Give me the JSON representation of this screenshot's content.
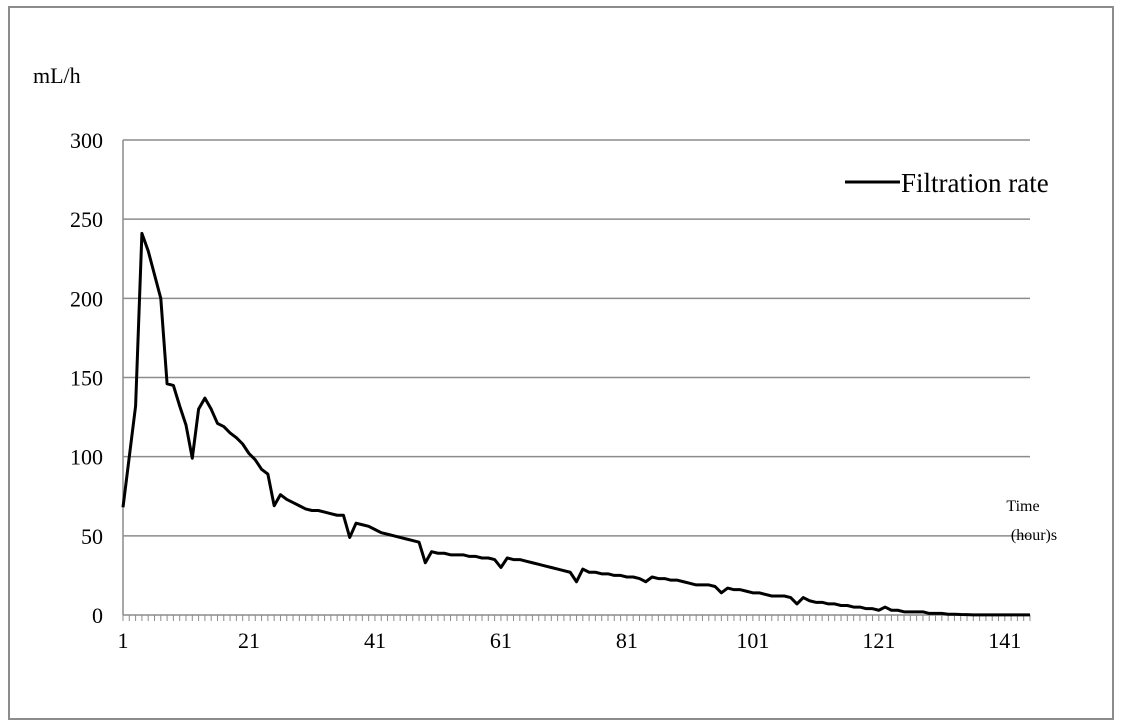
{
  "chart_data": {
    "type": "line",
    "ylabel": "mL/h",
    "xlabel_line1": "Time",
    "xlabel_line2": "(hour)s",
    "ylim": [
      0,
      300
    ],
    "yticks": [
      "0",
      "50",
      "100",
      "150",
      "200",
      "250",
      "300"
    ],
    "xticks": [
      "1",
      "21",
      "41",
      "61",
      "81",
      "101",
      "121",
      "141"
    ],
    "grid": true,
    "legend_position": "top-right",
    "line_color": "#000000",
    "series": [
      {
        "name": "Filtration rate",
        "x": [
          1,
          2,
          3,
          4,
          5,
          6,
          7,
          8,
          9,
          10,
          11,
          12,
          13,
          14,
          15,
          16,
          17,
          18,
          19,
          20,
          21,
          22,
          23,
          24,
          25,
          26,
          27,
          28,
          29,
          30,
          31,
          32,
          33,
          34,
          35,
          36,
          37,
          38,
          39,
          40,
          41,
          42,
          43,
          44,
          45,
          46,
          47,
          48,
          49,
          50,
          51,
          52,
          53,
          54,
          55,
          56,
          57,
          58,
          59,
          60,
          61,
          62,
          63,
          64,
          65,
          66,
          67,
          68,
          69,
          70,
          71,
          72,
          73,
          74,
          75,
          76,
          77,
          78,
          79,
          80,
          81,
          82,
          83,
          84,
          85,
          86,
          87,
          88,
          89,
          90,
          91,
          92,
          93,
          94,
          95,
          96,
          97,
          98,
          99,
          100,
          101,
          102,
          103,
          104,
          105,
          106,
          107,
          108,
          109,
          110,
          111,
          112,
          113,
          114,
          115,
          116,
          117,
          118,
          119,
          120,
          121,
          122,
          123,
          124,
          125,
          126,
          127,
          128,
          129,
          130,
          131,
          132,
          133,
          134,
          135,
          136,
          137,
          138,
          139,
          140,
          141,
          142,
          143,
          144,
          145
        ],
        "values": [
          68,
          100,
          132,
          241,
          230,
          215,
          200,
          146,
          145,
          132,
          120,
          99,
          130,
          137,
          130,
          121,
          119,
          115,
          112,
          108,
          102,
          98,
          92,
          89,
          69,
          76,
          73,
          71,
          69,
          67,
          66,
          66,
          65,
          64,
          63,
          63,
          49,
          58,
          57,
          56,
          54,
          52,
          51,
          50,
          49,
          48,
          47,
          46,
          33,
          40,
          39,
          39,
          38,
          38,
          38,
          37,
          37,
          36,
          36,
          35,
          30,
          36,
          35,
          35,
          34,
          33,
          32,
          31,
          30,
          29,
          28,
          27,
          21,
          29,
          27,
          27,
          26,
          26,
          25,
          25,
          24,
          24,
          23,
          21,
          24,
          23,
          23,
          22,
          22,
          21,
          20,
          19,
          19,
          19,
          18,
          14,
          17,
          16,
          16,
          15,
          14,
          14,
          13,
          12,
          12,
          12,
          11,
          7,
          11,
          9,
          8,
          8,
          7,
          7,
          6,
          6,
          5,
          5,
          4,
          4,
          3,
          5,
          3,
          3,
          2,
          2,
          2,
          2,
          1,
          1,
          1,
          0.5,
          0.5,
          0.3,
          0.2,
          0.1,
          0.1,
          0.1,
          0.1,
          0.1,
          0.1,
          0.1,
          0.1,
          0.1,
          0.1
        ]
      }
    ]
  }
}
